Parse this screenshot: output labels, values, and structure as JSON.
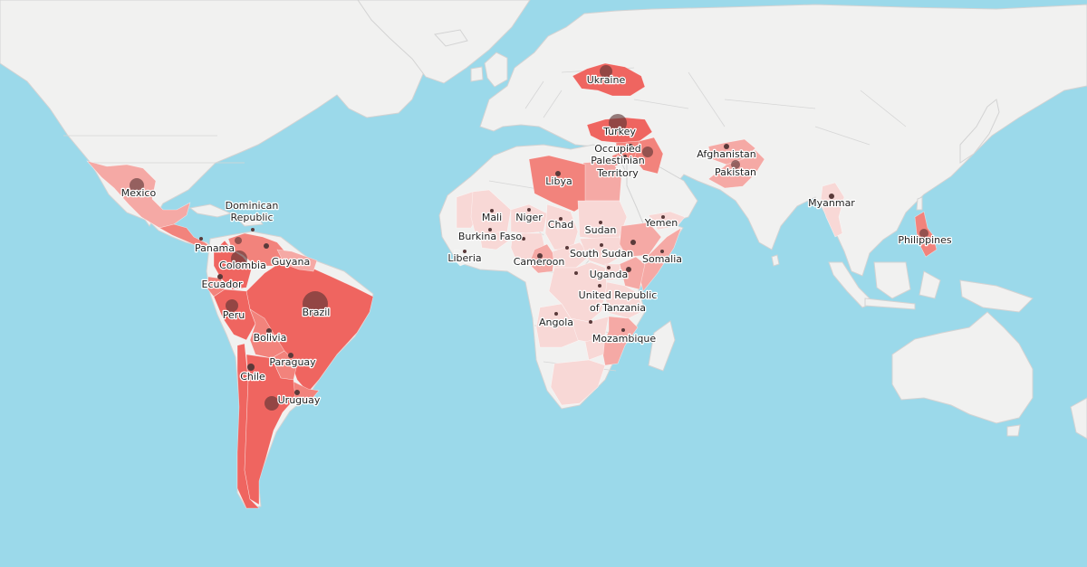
{
  "colors": {
    "ocean": "#9bd9ea",
    "land": "#f1f1f0",
    "level_1": "#f8d8d6",
    "level_2": "#f5a9a5",
    "level_3": "#f2837c",
    "level_4": "#ef6560",
    "marker": "#5a3a3a"
  },
  "countries": [
    {
      "id": "mexico",
      "label": "Mexico",
      "level": 2,
      "marker": "large"
    },
    {
      "id": "dominican-republic",
      "label": "Dominican Republic",
      "level": 0,
      "marker": "small"
    },
    {
      "id": "panama",
      "label": "Panama",
      "level": 0,
      "marker": "small"
    },
    {
      "id": "colombia",
      "label": "Colombia",
      "level": 4,
      "marker": "large"
    },
    {
      "id": "guyana",
      "label": "Guyana",
      "level": 2,
      "marker": "small"
    },
    {
      "id": "ecuador",
      "label": "Ecuador",
      "level": 3,
      "marker": "small"
    },
    {
      "id": "peru",
      "label": "Peru",
      "level": 4,
      "marker": "large"
    },
    {
      "id": "brazil",
      "label": "Brazil",
      "level": 4,
      "marker": "large"
    },
    {
      "id": "bolivia",
      "label": "Bolivia",
      "level": 3,
      "marker": "small"
    },
    {
      "id": "paraguay",
      "label": "Paraguay",
      "level": 3,
      "marker": "small"
    },
    {
      "id": "chile",
      "label": "Chile",
      "level": 4,
      "marker": "small"
    },
    {
      "id": "uruguay",
      "label": "Uruguay",
      "level": 3,
      "marker": "small"
    },
    {
      "id": "ukraine",
      "label": "Ukraine",
      "level": 4,
      "marker": "large"
    },
    {
      "id": "turkey",
      "label": "Turkey",
      "level": 4,
      "marker": "large"
    },
    {
      "id": "occupied-palestinian-territory",
      "label": "Occupied Palestinian Territory",
      "level": 3,
      "marker": "small"
    },
    {
      "id": "libya",
      "label": "Libya",
      "level": 3,
      "marker": "small"
    },
    {
      "id": "afghanistan",
      "label": "Afghanistan",
      "level": 2,
      "marker": "small"
    },
    {
      "id": "pakistan",
      "label": "Pakistan",
      "level": 2,
      "marker": "large"
    },
    {
      "id": "myanmar",
      "label": "Myanmar",
      "level": 1,
      "marker": "small"
    },
    {
      "id": "philippines",
      "label": "Philippines",
      "level": 3,
      "marker": "large"
    },
    {
      "id": "mali",
      "label": "Mali",
      "level": 1,
      "marker": "small"
    },
    {
      "id": "niger",
      "label": "Niger",
      "level": 1,
      "marker": "small"
    },
    {
      "id": "chad",
      "label": "Chad",
      "level": 1,
      "marker": "small"
    },
    {
      "id": "sudan",
      "label": "Sudan",
      "level": 1,
      "marker": "small"
    },
    {
      "id": "yemen",
      "label": "Yemen",
      "level": 1,
      "marker": "small"
    },
    {
      "id": "burkina-faso",
      "label": "Burkina Faso",
      "level": 1,
      "marker": "small"
    },
    {
      "id": "liberia",
      "label": "Liberia",
      "level": 0,
      "marker": "small"
    },
    {
      "id": "cameroon",
      "label": "Cameroon",
      "level": 2,
      "marker": "small"
    },
    {
      "id": "south-sudan",
      "label": "South Sudan",
      "level": 1,
      "marker": "small"
    },
    {
      "id": "somalia",
      "label": "Somalia",
      "level": 2,
      "marker": "small"
    },
    {
      "id": "uganda",
      "label": "Uganda",
      "level": 1,
      "marker": "small"
    },
    {
      "id": "united-republic-of-tanzania",
      "label": "United Republic of Tanzania",
      "level": 1,
      "marker": "small"
    },
    {
      "id": "angola",
      "label": "Angola",
      "level": 1,
      "marker": "small"
    },
    {
      "id": "mozambique",
      "label": "Mozambique",
      "level": 2,
      "marker": "small"
    },
    {
      "id": "ethiopia",
      "label": "",
      "level": 2,
      "marker": "small"
    },
    {
      "id": "kenya",
      "label": "",
      "level": 2,
      "marker": "small"
    },
    {
      "id": "dr-congo",
      "label": "",
      "level": 1,
      "marker": "small"
    },
    {
      "id": "car",
      "label": "",
      "level": 1,
      "marker": "small"
    },
    {
      "id": "nigeria",
      "label": "",
      "level": 1,
      "marker": "small"
    },
    {
      "id": "egypt",
      "label": "",
      "level": 2,
      "marker": "none"
    },
    {
      "id": "syria",
      "label": "",
      "level": 3,
      "marker": "small"
    },
    {
      "id": "iraq",
      "label": "",
      "level": 3,
      "marker": "large"
    },
    {
      "id": "zambia",
      "label": "",
      "level": 1,
      "marker": "small"
    },
    {
      "id": "zimbabwe",
      "label": "",
      "level": 1,
      "marker": "none"
    },
    {
      "id": "south-africa",
      "label": "",
      "level": 1,
      "marker": "none"
    },
    {
      "id": "mauritania",
      "label": "",
      "level": 1,
      "marker": "none"
    },
    {
      "id": "argentina",
      "label": "",
      "level": 4,
      "marker": "large"
    },
    {
      "id": "venezuela",
      "label": "",
      "level": 3,
      "marker": "large"
    },
    {
      "id": "central-america",
      "label": "",
      "level": 3,
      "marker": "none"
    },
    {
      "id": "yemen-east",
      "label": "",
      "level": 1,
      "marker": "none"
    }
  ]
}
